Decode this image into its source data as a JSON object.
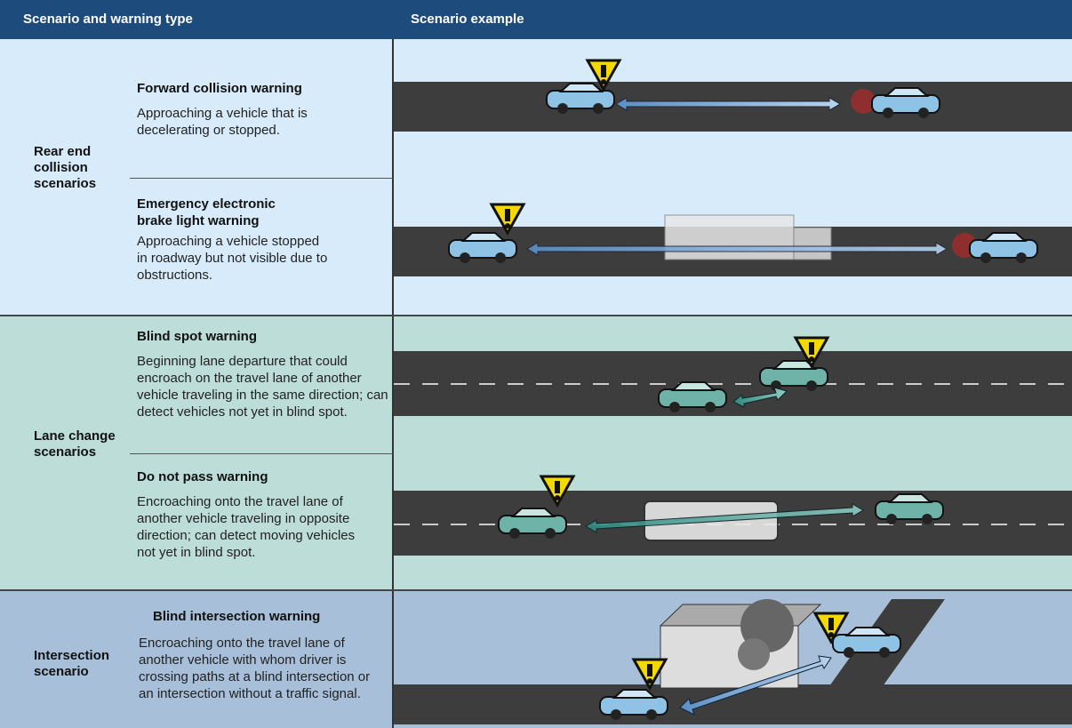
{
  "header": {
    "col1": "Scenario and warning type",
    "col2": "Scenario example"
  },
  "groups": [
    {
      "label": "Rear end collision scenarios",
      "rows": [
        {
          "title": "Forward collision warning",
          "description": "Approaching a vehicle that is decelerating or stopped."
        },
        {
          "title": "Emergency electronic brake light warning",
          "description": "Approaching a vehicle stopped in roadway but not visible due to obstructions."
        }
      ]
    },
    {
      "label": "Lane change scenarios",
      "rows": [
        {
          "title": "Blind spot warning",
          "description": "Beginning lane departure that could encroach on the travel lane of another vehicle traveling in the same direction; can detect vehicles not yet in blind spot."
        },
        {
          "title": "Do not pass warning",
          "description": "Encroaching onto the travel lane of another vehicle traveling in opposite direction; can detect moving vehicles not yet in blind spot."
        }
      ]
    },
    {
      "label": "Intersection scenario",
      "rows": [
        {
          "title": "Blind intersection warning",
          "description": "Encroaching onto the travel lane of another vehicle with whom driver is crossing paths at a blind intersection or an intersection without a traffic signal."
        }
      ]
    }
  ]
}
